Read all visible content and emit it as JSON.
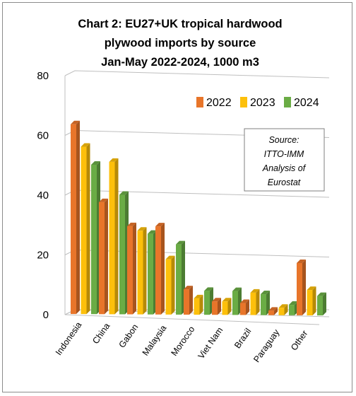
{
  "chart_data": {
    "type": "bar",
    "title_lines": [
      "Chart 2: EU27+UK tropical  hardwood",
      "plywood imports by source",
      "Jan-May 2022-2024, 1000 m3"
    ],
    "categories": [
      "Indonesia",
      "China",
      "Gabon",
      "Malaysia",
      "Morocco",
      "Viet Nam",
      "Brazil",
      "Paraguay",
      "Other"
    ],
    "series": [
      {
        "name": "2022",
        "color": "#e8752a",
        "values": [
          63.5,
          37.5,
          29.5,
          29.5,
          8.5,
          4.5,
          4,
          1.5,
          17.5
        ]
      },
      {
        "name": "2023",
        "color": "#fdc00b",
        "values": [
          56,
          51,
          28,
          18.5,
          5.5,
          4.5,
          7.5,
          2.5,
          8.5
        ]
      },
      {
        "name": "2024",
        "color": "#6aac45",
        "values": [
          50,
          40,
          27,
          23.5,
          8,
          8,
          7,
          3.5,
          6.5
        ]
      }
    ],
    "ylim": [
      0,
      80
    ],
    "yticks": [
      "0",
      "20",
      "40",
      "60",
      "80"
    ],
    "grid": true,
    "legend": "top-right",
    "annotation": [
      "Source:",
      "ITTO-IMM",
      "Analysis of",
      "Eurostat"
    ]
  }
}
